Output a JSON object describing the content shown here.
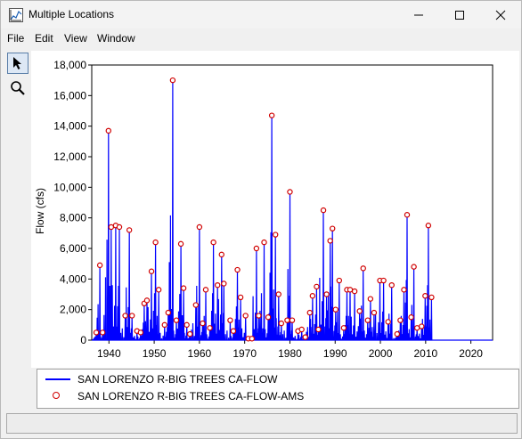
{
  "window": {
    "title": "Multiple Locations"
  },
  "menu": [
    "File",
    "Edit",
    "View",
    "Window"
  ],
  "tools": [
    "pointer-icon",
    "zoom-icon"
  ],
  "legend": [
    {
      "label": "SAN LORENZO R-BIG TREES CA-FLOW",
      "style": "line",
      "color": "#0000ff"
    },
    {
      "label": "SAN LORENZO R-BIG TREES CA-FLOW-AMS",
      "style": "marker",
      "color": "#d00000"
    }
  ],
  "chart_data": {
    "type": "line",
    "ylabel": "Flow (cfs)",
    "xlim": [
      1936.2,
      2024.8
    ],
    "ylim": [
      0,
      18000
    ],
    "yticks": [
      "0",
      "2,000",
      "4,000",
      "6,000",
      "8,000",
      "10,000",
      "12,000",
      "14,000",
      "16,000",
      "18,000"
    ],
    "ytick_values": [
      0,
      2000,
      4000,
      6000,
      8000,
      10000,
      12000,
      14000,
      16000,
      18000
    ],
    "xticks": [
      "1940",
      "1950",
      "1960",
      "1970",
      "1980",
      "1990",
      "2000",
      "2010",
      "2020"
    ],
    "xtick_values": [
      1940,
      1950,
      1960,
      1970,
      1980,
      1990,
      2000,
      2010,
      2020
    ],
    "grid": false,
    "line_color": "#0000ff",
    "marker_color": "#d00000",
    "series": [
      {
        "name": "SAN LORENZO R-BIG TREES CA-FLOW-AMS",
        "points": [
          [
            1937.2,
            500
          ],
          [
            1938.0,
            4900
          ],
          [
            1938.6,
            500
          ],
          [
            1939.9,
            13700
          ],
          [
            1940.5,
            7400
          ],
          [
            1941.5,
            7500
          ],
          [
            1942.3,
            7400
          ],
          [
            1943.6,
            1600
          ],
          [
            1944.5,
            7200
          ],
          [
            1945.1,
            1600
          ],
          [
            1946.2,
            600
          ],
          [
            1947.0,
            500
          ],
          [
            1947.8,
            2400
          ],
          [
            1948.4,
            2600
          ],
          [
            1949.4,
            4500
          ],
          [
            1950.3,
            6400
          ],
          [
            1951.0,
            3300
          ],
          [
            1952.3,
            1000
          ],
          [
            1953.1,
            1800
          ],
          [
            1954.1,
            17000
          ],
          [
            1954.9,
            1300
          ],
          [
            1955.9,
            6300
          ],
          [
            1956.5,
            3400
          ],
          [
            1957.2,
            1000
          ],
          [
            1957.9,
            400
          ],
          [
            1959.2,
            2300
          ],
          [
            1960.0,
            7400
          ],
          [
            1960.7,
            1100
          ],
          [
            1961.4,
            3300
          ],
          [
            1962.3,
            800
          ],
          [
            1963.1,
            6400
          ],
          [
            1964.0,
            3600
          ],
          [
            1964.9,
            5600
          ],
          [
            1965.4,
            3700
          ],
          [
            1966.8,
            1300
          ],
          [
            1967.5,
            600
          ],
          [
            1968.4,
            4600
          ],
          [
            1969.1,
            2800
          ],
          [
            1970.2,
            1600
          ],
          [
            1970.8,
            100
          ],
          [
            1971.6,
            100
          ],
          [
            1972.6,
            6000
          ],
          [
            1973.1,
            1600
          ],
          [
            1974.3,
            6400
          ],
          [
            1975.2,
            1500
          ],
          [
            1976.0,
            14700
          ],
          [
            1976.8,
            6900
          ],
          [
            1977.5,
            3000
          ],
          [
            1978.1,
            1100
          ],
          [
            1979.4,
            1300
          ],
          [
            1980.0,
            9700
          ],
          [
            1980.5,
            1300
          ],
          [
            1981.8,
            600
          ],
          [
            1982.6,
            700
          ],
          [
            1983.4,
            200
          ],
          [
            1984.4,
            1800
          ],
          [
            1985.0,
            2900
          ],
          [
            1985.9,
            3500
          ],
          [
            1986.3,
            700
          ],
          [
            1987.4,
            8500
          ],
          [
            1988.1,
            3000
          ],
          [
            1988.9,
            6500
          ],
          [
            1989.4,
            7300
          ],
          [
            1990.1,
            2000
          ],
          [
            1990.9,
            3900
          ],
          [
            1991.9,
            800
          ],
          [
            1992.6,
            3300
          ],
          [
            1993.3,
            3300
          ],
          [
            1994.3,
            3200
          ],
          [
            1995.4,
            1900
          ],
          [
            1996.2,
            4700
          ],
          [
            1997.2,
            1300
          ],
          [
            1997.8,
            2700
          ],
          [
            1998.6,
            1800
          ],
          [
            1999.9,
            3900
          ],
          [
            2000.7,
            3900
          ],
          [
            2001.7,
            1200
          ],
          [
            2002.5,
            3600
          ],
          [
            2003.7,
            400
          ],
          [
            2004.4,
            1300
          ],
          [
            2005.2,
            3300
          ],
          [
            2005.9,
            8200
          ],
          [
            2006.8,
            1500
          ],
          [
            2007.4,
            4800
          ],
          [
            2008.1,
            800
          ],
          [
            2009.1,
            900
          ],
          [
            2009.9,
            2900
          ],
          [
            2010.6,
            7500
          ],
          [
            2011.3,
            2800
          ]
        ]
      }
    ]
  }
}
